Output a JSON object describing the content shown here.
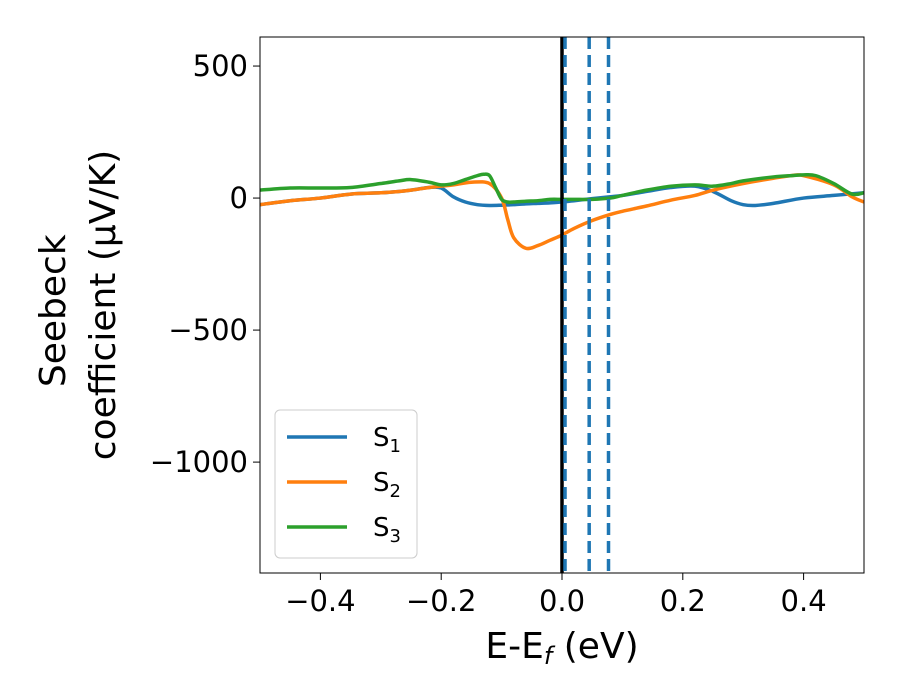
{
  "chart_data": {
    "type": "line",
    "xlabel": "E-E",
    "xlabel_sub": "f",
    "xlabel_unit": " (eV)",
    "ylabel_lines": [
      "Seebeck",
      "coefficient  (μV/K)"
    ],
    "xlim": [
      -0.5,
      0.5
    ],
    "ylim": [
      -1420,
      610
    ],
    "xticks": [
      -0.4,
      -0.2,
      0.0,
      0.2,
      0.4
    ],
    "xtick_labels": [
      "−0.4",
      "−0.2",
      "0.0",
      "0.2",
      "0.4"
    ],
    "yticks": [
      500,
      0,
      -500,
      -1000
    ],
    "ytick_labels": [
      "500",
      "0",
      "−500",
      "−1000"
    ],
    "grid": false,
    "legend_position": "lower-left",
    "vertical_lines": [
      {
        "x": 0.0,
        "color": "#000000",
        "style": "solid"
      },
      {
        "x": 0.005,
        "color": "#1f77b4",
        "style": "dashed"
      },
      {
        "x": 0.045,
        "color": "#1f77b4",
        "style": "dashed"
      },
      {
        "x": 0.077,
        "color": "#1f77b4",
        "style": "dashed"
      }
    ],
    "series": [
      {
        "name": "S",
        "name_sub": "1",
        "color": "#1f77b4",
        "x": [
          -0.5,
          -0.45,
          -0.4,
          -0.35,
          -0.3,
          -0.27,
          -0.25,
          -0.22,
          -0.2,
          -0.18,
          -0.16,
          -0.14,
          -0.12,
          -0.1,
          -0.08,
          -0.06,
          -0.04,
          -0.02,
          0.0,
          0.02,
          0.05,
          0.08,
          0.1,
          0.14,
          0.18,
          0.22,
          0.25,
          0.28,
          0.3,
          0.32,
          0.35,
          0.4,
          0.45,
          0.5
        ],
        "y": [
          -25,
          -10,
          0,
          15,
          20,
          25,
          30,
          40,
          38,
          5,
          -15,
          -25,
          -28,
          -27,
          -25,
          -22,
          -20,
          -18,
          -15,
          -10,
          -2,
          5,
          10,
          25,
          40,
          45,
          25,
          -10,
          -25,
          -28,
          -20,
          0,
          10,
          20
        ]
      },
      {
        "name": "S",
        "name_sub": "2",
        "color": "#ff7f0e",
        "x": [
          -0.5,
          -0.45,
          -0.4,
          -0.35,
          -0.3,
          -0.27,
          -0.25,
          -0.22,
          -0.2,
          -0.18,
          -0.15,
          -0.12,
          -0.1,
          -0.09,
          -0.08,
          -0.06,
          -0.04,
          -0.02,
          0.0,
          0.02,
          0.05,
          0.08,
          0.1,
          0.14,
          0.18,
          0.22,
          0.25,
          0.3,
          0.35,
          0.38,
          0.4,
          0.45,
          0.48,
          0.5
        ],
        "y": [
          -25,
          -10,
          0,
          15,
          20,
          25,
          30,
          40,
          45,
          50,
          60,
          55,
          0,
          -80,
          -150,
          -190,
          -180,
          -160,
          -140,
          -115,
          -85,
          -62,
          -50,
          -30,
          -8,
          10,
          30,
          55,
          75,
          85,
          85,
          50,
          5,
          -15
        ]
      },
      {
        "name": "S",
        "name_sub": "3",
        "color": "#2ca02c",
        "x": [
          -0.5,
          -0.45,
          -0.4,
          -0.35,
          -0.3,
          -0.27,
          -0.25,
          -0.22,
          -0.2,
          -0.18,
          -0.16,
          -0.14,
          -0.13,
          -0.12,
          -0.11,
          -0.1,
          -0.09,
          -0.08,
          -0.06,
          -0.04,
          -0.02,
          0.0,
          0.02,
          0.05,
          0.08,
          0.1,
          0.14,
          0.18,
          0.22,
          0.25,
          0.28,
          0.3,
          0.35,
          0.38,
          0.4,
          0.42,
          0.45,
          0.48,
          0.5
        ],
        "y": [
          30,
          38,
          38,
          40,
          55,
          65,
          70,
          60,
          50,
          55,
          70,
          85,
          90,
          85,
          40,
          -5,
          -15,
          -15,
          -12,
          -10,
          -5,
          -5,
          -5,
          -5,
          0,
          10,
          30,
          45,
          50,
          45,
          55,
          65,
          80,
          85,
          88,
          85,
          55,
          15,
          20
        ]
      }
    ]
  }
}
